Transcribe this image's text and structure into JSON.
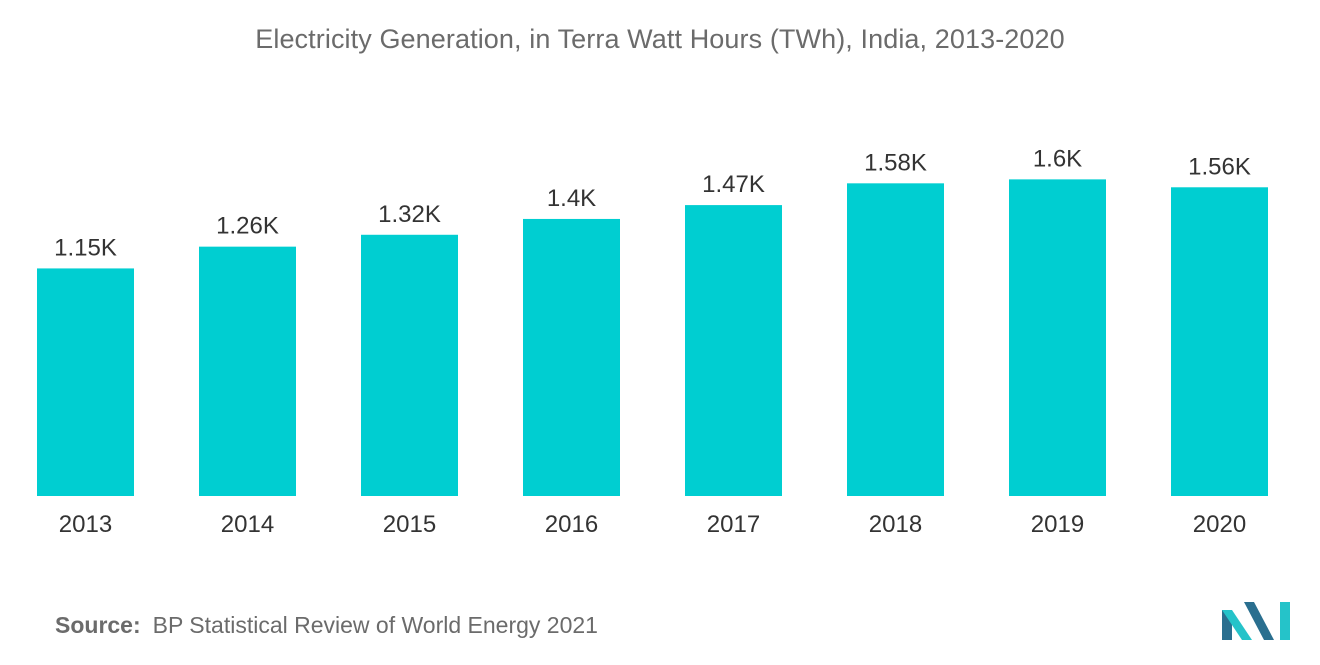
{
  "chart_data": {
    "type": "bar",
    "title": "Electricity Generation, in Terra Watt Hours (TWh), India, 2013-2020",
    "categories": [
      "2013",
      "2014",
      "2015",
      "2016",
      "2017",
      "2018",
      "2019",
      "2020"
    ],
    "values": [
      1150,
      1260,
      1320,
      1400,
      1470,
      1580,
      1600,
      1560
    ],
    "data_labels": [
      "1.15K",
      "1.26K",
      "1.32K",
      "1.4K",
      "1.47K",
      "1.58K",
      "1.6K",
      "1.56K"
    ],
    "xlabel": "",
    "ylabel": "",
    "ylim": [
      0,
      1900
    ],
    "grid": false,
    "legend": "none",
    "bar_color": "#00ced1"
  },
  "footer": {
    "source_label": "Source:",
    "source_text": "BP Statistical Review of World Energy 2021"
  },
  "colors": {
    "text": "#6b6b6b",
    "value_label": "#333333",
    "logo_dark": "#2a6f8f",
    "logo_light": "#25c3c9"
  },
  "logo": {
    "icon": "mordor-intelligence-logo-icon"
  }
}
